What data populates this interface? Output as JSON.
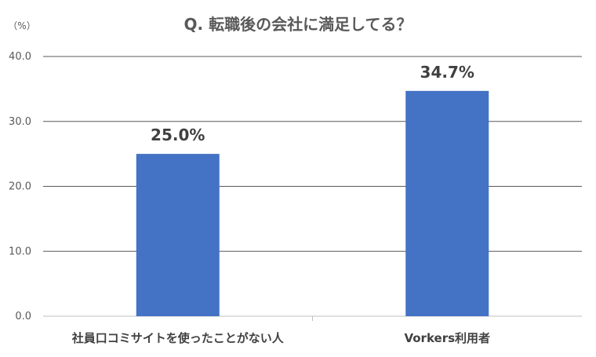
{
  "chart_data": {
    "type": "bar",
    "title": "Q. 転職後の会社に満足してる？",
    "ylabel": "（%）",
    "categories": [
      "社員口コミサイトを使ったことがない人",
      "Vorkers利用者"
    ],
    "values": [
      25.0,
      34.7
    ],
    "data_labels": [
      "25.0%",
      "34.7%"
    ],
    "yticks": [
      "0.0",
      "10.0",
      "20.0",
      "30.0",
      "40.0"
    ],
    "ylim": [
      0,
      40
    ],
    "grid": true,
    "bar_color": "#4472C4",
    "grid_color": "#595959"
  }
}
